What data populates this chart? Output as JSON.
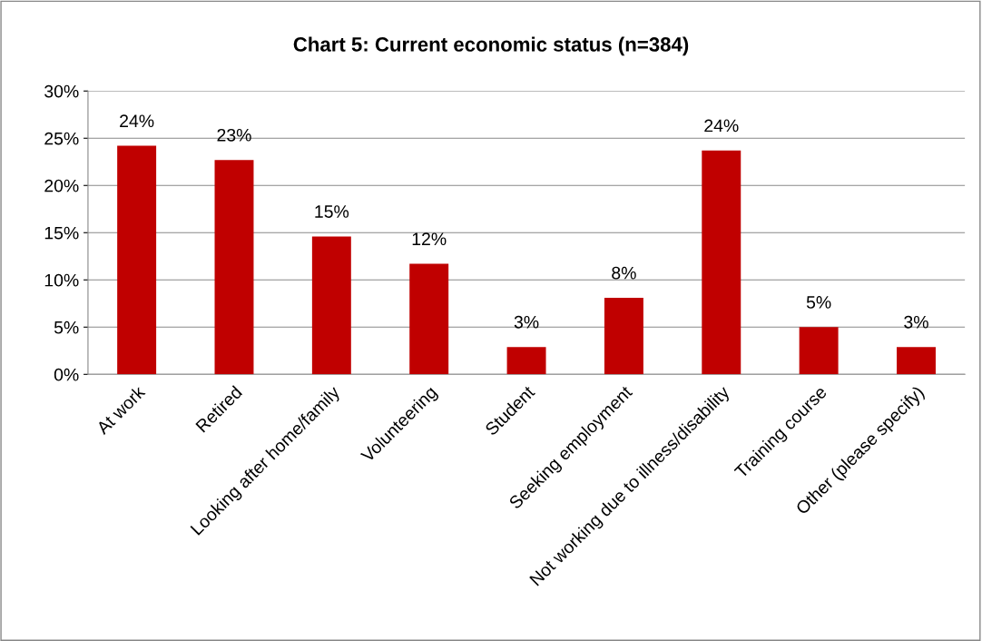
{
  "chart_data": {
    "type": "bar",
    "title": "Chart 5: Current economic status (n=384)",
    "categories": [
      "At work",
      "Retired",
      "Looking after home/family",
      "Volunteering",
      "Student",
      "Seeking employment",
      "Not working due to illness/disability",
      "Training course",
      "Other (please specify)"
    ],
    "values": [
      24.2,
      22.7,
      14.6,
      11.7,
      2.9,
      8.1,
      23.7,
      5.0,
      2.9
    ],
    "value_labels": [
      "24%",
      "23%",
      "15%",
      "12%",
      "3%",
      "8%",
      "24%",
      "5%",
      "3%"
    ],
    "color": "#c00000",
    "ylim": [
      0,
      30
    ],
    "yticks": [
      {
        "value": 0,
        "label": "0%"
      },
      {
        "value": 5,
        "label": "5%"
      },
      {
        "value": 10,
        "label": "10%"
      },
      {
        "value": 15,
        "label": "15%"
      },
      {
        "value": 20,
        "label": "20%"
      },
      {
        "value": 25,
        "label": "25%"
      },
      {
        "value": 30,
        "label": "30%"
      }
    ],
    "grid": "y"
  }
}
